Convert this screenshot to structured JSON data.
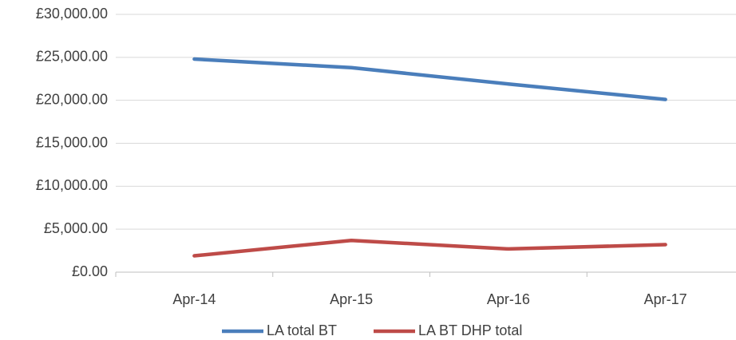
{
  "chart_data": {
    "type": "line",
    "categories": [
      "Apr-14",
      "Apr-15",
      "Apr-16",
      "Apr-17"
    ],
    "series": [
      {
        "name": "LA total BT",
        "color": "#4a7ebb",
        "values": [
          24800,
          23800,
          21900,
          20100
        ]
      },
      {
        "name": "LA BT DHP total",
        "color": "#be4b48",
        "values": [
          1900,
          3700,
          2700,
          3200
        ]
      }
    ],
    "ylim": [
      0,
      30000
    ],
    "yticks": [
      {
        "value": 0,
        "label": "£0.00"
      },
      {
        "value": 5000,
        "label": "£5,000.00"
      },
      {
        "value": 10000,
        "label": "£10,000.00"
      },
      {
        "value": 15000,
        "label": "£15,000.00"
      },
      {
        "value": 20000,
        "label": "£20,000.00"
      },
      {
        "value": 25000,
        "label": "£25,000.00"
      },
      {
        "value": 30000,
        "label": "£30,000.00"
      }
    ],
    "grid": true,
    "legend": "bottom"
  }
}
